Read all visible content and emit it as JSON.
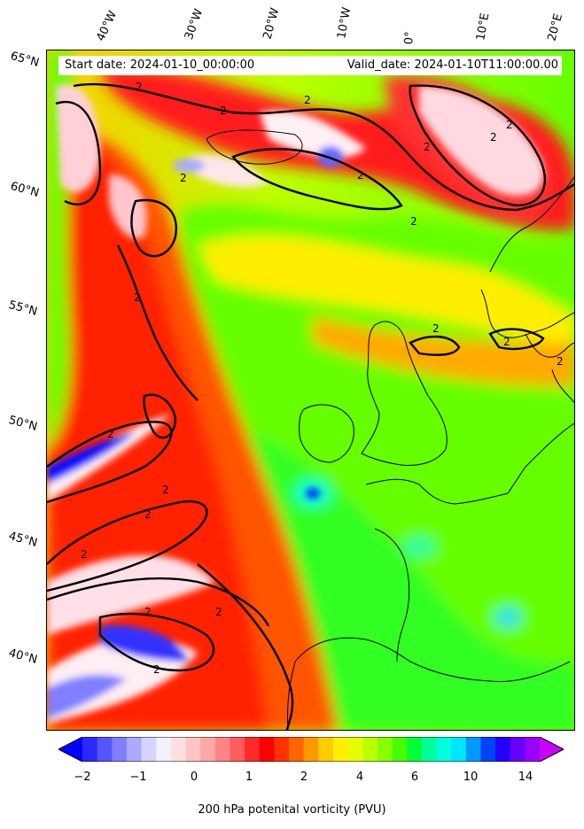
{
  "header": {
    "start_date": "Start date: 2024-01-10_00:00:00",
    "valid_date": "Valid_date: 2024-01-10T11:00:00.00"
  },
  "latitude_labels": [
    "65°N",
    "60°N",
    "55°N",
    "50°N",
    "45°N",
    "40°N"
  ],
  "longitude_labels": [
    "40°W",
    "30°W",
    "20°W",
    "10°W",
    "0°",
    "10°E",
    "20°E"
  ],
  "contour_labels": [
    "2",
    "2",
    "2",
    "2",
    "2",
    "2",
    "2",
    "2",
    "2",
    "2",
    "2",
    "2",
    "2",
    "2",
    "2",
    "2",
    "2",
    "2",
    "2",
    "2"
  ],
  "colorbar": {
    "label": "200 hPa potenital vorticity (PVU)",
    "ticks": [
      "−2",
      "−1",
      "0",
      "1",
      "2",
      "4",
      "6",
      "10",
      "14"
    ],
    "colors": [
      "#0000ff",
      "#2a2aff",
      "#5555ff",
      "#7f7fff",
      "#aaaaff",
      "#d4d4ff",
      "#f4f0ff",
      "#ffe0e0",
      "#ffc4c4",
      "#ffa8a8",
      "#ff8585",
      "#ff5c5c",
      "#ff2a2a",
      "#ff0000",
      "#ff3300",
      "#ff6600",
      "#ff9900",
      "#ffcc00",
      "#ffee00",
      "#e6ff00",
      "#bbff00",
      "#88ff00",
      "#44ff00",
      "#00ff33",
      "#00ff99",
      "#00ffdd",
      "#00e5ff",
      "#0099ff",
      "#0044ff",
      "#2200ff",
      "#6600ff",
      "#9900ff",
      "#cc00ff"
    ]
  }
}
